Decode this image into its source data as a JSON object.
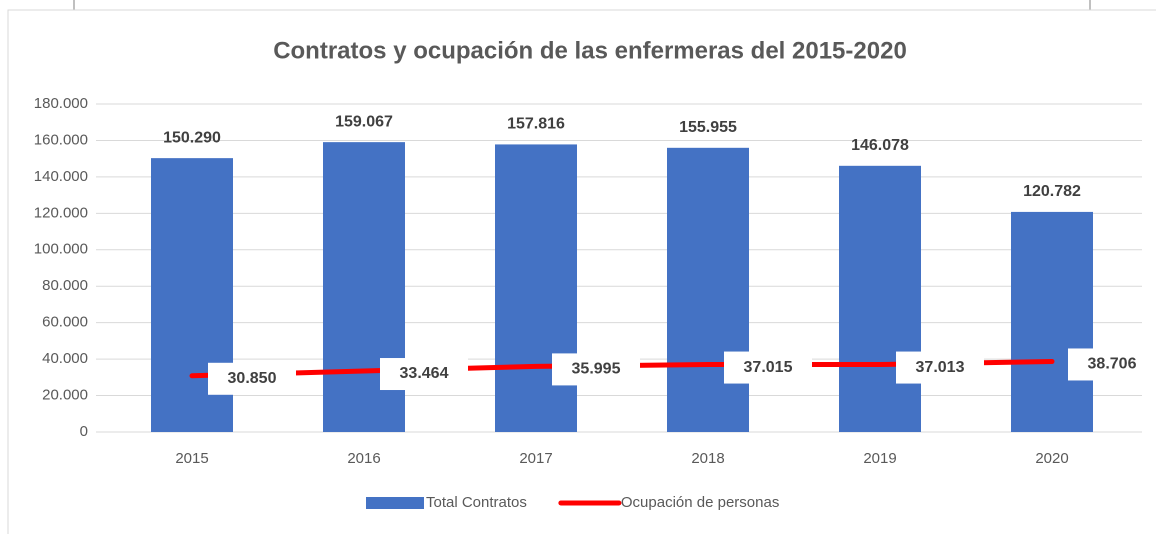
{
  "chart_data": {
    "type": "bar",
    "title": "Contratos y ocupación de las enfermeras del 2015-2020",
    "categories": [
      "2015",
      "2016",
      "2017",
      "2018",
      "2019",
      "2020"
    ],
    "series": [
      {
        "name": "Total Contratos",
        "type": "bar",
        "color": "#4472c4",
        "values": [
          150290,
          159067,
          157816,
          155955,
          146078,
          120782
        ],
        "value_labels": [
          "150.290",
          "159.067",
          "157.816",
          "155.955",
          "146.078",
          "120.782"
        ]
      },
      {
        "name": "Ocupación de personas",
        "type": "line",
        "color": "#ff0000",
        "values": [
          30850,
          33464,
          35995,
          37015,
          37013,
          38706
        ],
        "value_labels": [
          "30.850",
          "33.464",
          "35.995",
          "37.015",
          "37.013",
          "38.706"
        ]
      }
    ],
    "ylim": [
      0,
      180000
    ],
    "yticks": [
      0,
      {
        "value": 20000,
        "label": "20.000"
      },
      {
        "value": 40000,
        "label": "40.000"
      },
      {
        "value": 60000,
        "label": "60.000"
      },
      {
        "value": 80000,
        "label": "80.000"
      },
      {
        "value": 100000,
        "label": "100.000"
      },
      {
        "value": 120000,
        "label": "120.000"
      },
      {
        "value": 140000,
        "label": "140.000"
      },
      {
        "value": 160000,
        "label": "160.000"
      },
      {
        "value": 180000,
        "label": "180.000"
      }
    ],
    "grid": true,
    "legend": "bottom"
  }
}
